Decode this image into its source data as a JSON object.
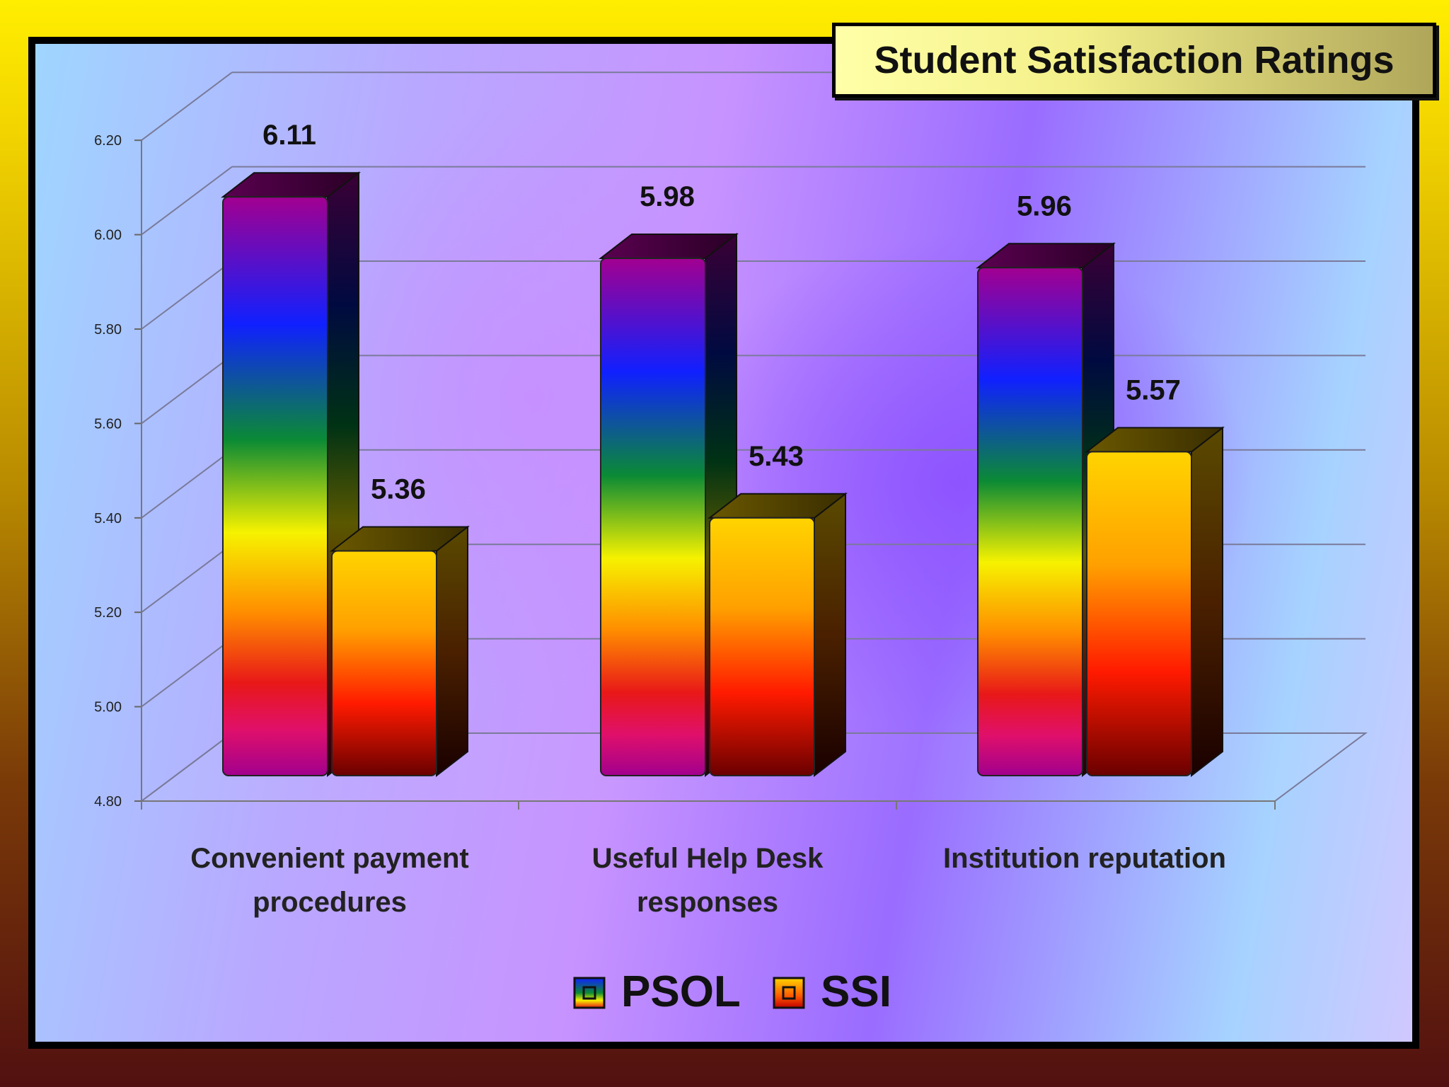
{
  "chart_data": {
    "type": "bar",
    "title": "Student Satisfaction Ratings",
    "categories": [
      [
        "Convenient payment",
        "procedures"
      ],
      [
        "Useful Help Desk",
        "responses"
      ],
      [
        "Institution reputation"
      ]
    ],
    "series": [
      {
        "name": "PSOL",
        "values": [
          6.11,
          5.98,
          5.96
        ],
        "data_labels": [
          "6.11",
          "5.98",
          "5.96"
        ]
      },
      {
        "name": "SSI",
        "values": [
          5.36,
          5.43,
          5.57
        ],
        "data_labels": [
          "5.36",
          "5.43",
          "5.57"
        ]
      }
    ],
    "yticks": [
      "4.80",
      "5.00",
      "5.20",
      "5.40",
      "5.60",
      "5.80",
      "6.00",
      "6.20"
    ],
    "ylim": [
      4.8,
      6.2
    ],
    "grid": true,
    "legend": "bottom",
    "style": "3d-clustered-column"
  }
}
